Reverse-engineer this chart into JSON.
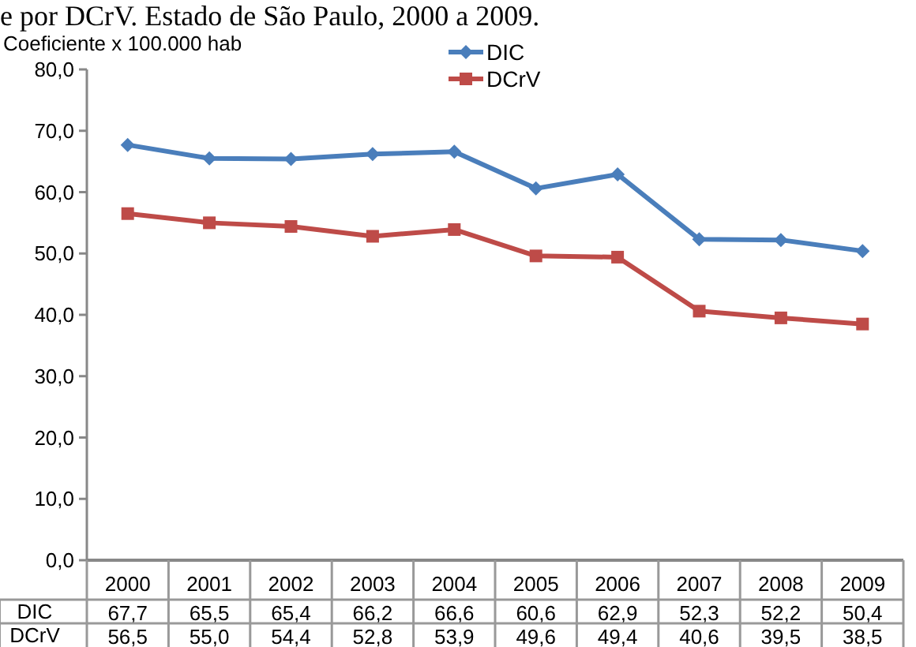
{
  "chart_data": {
    "type": "line",
    "title": "e por DCrV. Estado de São Paulo, 2000 a 2009.",
    "ylabel": "Coeficiente x 100.000 hab",
    "categories": [
      "2000",
      "2001",
      "2002",
      "2003",
      "2004",
      "2005",
      "2006",
      "2007",
      "2008",
      "2009"
    ],
    "series": [
      {
        "name": "DIC",
        "color": "#4a7ebb",
        "marker": "diamond",
        "values": [
          67.7,
          65.5,
          65.4,
          66.2,
          66.6,
          60.6,
          62.9,
          52.3,
          52.2,
          50.4
        ],
        "value_labels": [
          "67,7",
          "65,5",
          "65,4",
          "66,2",
          "66,6",
          "60,6",
          "62,9",
          "52,3",
          "52,2",
          "50,4"
        ]
      },
      {
        "name": "DCrV",
        "color": "#be4b48",
        "marker": "square",
        "values": [
          56.5,
          55.0,
          54.4,
          52.8,
          53.9,
          49.6,
          49.4,
          40.6,
          39.5,
          38.5
        ],
        "value_labels": [
          "56,5",
          "55,0",
          "54,4",
          "52,8",
          "53,9",
          "49,6",
          "49,4",
          "40,6",
          "39,5",
          "38,5"
        ]
      }
    ],
    "ylim": [
      0,
      80
    ],
    "yticks": [
      {
        "value": 0,
        "label": "0,0"
      },
      {
        "value": 10,
        "label": "10,0"
      },
      {
        "value": 20,
        "label": "20,0"
      },
      {
        "value": 30,
        "label": "30,0"
      },
      {
        "value": 40,
        "label": "40,0"
      },
      {
        "value": 50,
        "label": "50,0"
      },
      {
        "value": 60,
        "label": "60,0"
      },
      {
        "value": 70,
        "label": "70,0"
      },
      {
        "value": 80,
        "label": "80,0"
      }
    ],
    "grid": false,
    "legend": "top",
    "line_style": "solid"
  }
}
